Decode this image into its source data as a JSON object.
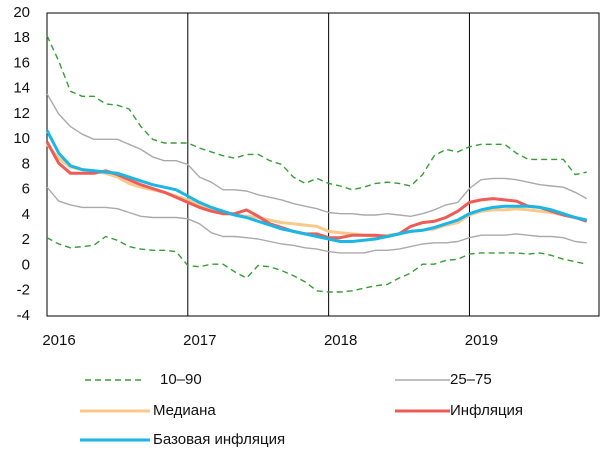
{
  "chart_data": {
    "type": "line",
    "x": [
      2016,
      2016.083,
      2016.167,
      2016.25,
      2016.333,
      2016.417,
      2016.5,
      2016.583,
      2016.667,
      2016.75,
      2016.833,
      2016.917,
      2017,
      2017.083,
      2017.167,
      2017.25,
      2017.333,
      2017.417,
      2017.5,
      2017.583,
      2017.667,
      2017.75,
      2017.833,
      2017.917,
      2018,
      2018.083,
      2018.167,
      2018.25,
      2018.333,
      2018.417,
      2018.5,
      2018.583,
      2018.667,
      2018.75,
      2018.833,
      2018.917,
      2019,
      2019.083,
      2019.167,
      2019.25,
      2019.333,
      2019.417,
      2019.5,
      2019.583,
      2019.667,
      2019.75,
      2019.833
    ],
    "xlim": [
      2016,
      2019.92
    ],
    "xticks": [
      2016,
      2017,
      2018,
      2019
    ],
    "ylim": [
      -4,
      20
    ],
    "yticks": [
      -4,
      -2,
      0,
      2,
      4,
      6,
      8,
      10,
      12,
      14,
      16,
      18,
      20
    ],
    "grid": "x",
    "series": [
      {
        "name": "10–90",
        "color": "#3a9a3a",
        "dashed": true,
        "low": [
          2.2,
          1.7,
          1.4,
          1.5,
          1.6,
          2.3,
          2.0,
          1.5,
          1.3,
          1.2,
          1.2,
          1.1,
          0.0,
          -0.1,
          0.1,
          0.1,
          -0.5,
          -1.0,
          0.0,
          -0.1,
          -0.4,
          -0.8,
          -1.3,
          -2.0,
          -2.1,
          -2.1,
          -2.0,
          -1.8,
          -1.6,
          -1.5,
          -1.0,
          -0.6,
          0.1,
          0.1,
          0.4,
          0.5,
          0.9,
          1.0,
          1.0,
          1.0,
          1.0,
          0.9,
          1.0,
          0.8,
          0.5,
          0.3,
          0.1
        ],
        "high": [
          18.2,
          16.2,
          13.8,
          13.4,
          13.4,
          12.8,
          12.7,
          12.4,
          11.0,
          10.0,
          9.7,
          9.7,
          9.7,
          9.3,
          9.0,
          8.7,
          8.5,
          8.8,
          8.8,
          8.3,
          8.0,
          7.0,
          6.5,
          6.9,
          6.5,
          6.3,
          6.0,
          6.2,
          6.5,
          6.6,
          6.5,
          6.3,
          7.2,
          8.7,
          9.2,
          9.0,
          9.4,
          9.6,
          9.6,
          9.6,
          8.9,
          8.4,
          8.4,
          8.4,
          8.4,
          7.2,
          7.4
        ]
      },
      {
        "name": "25–75",
        "color": "#aaaaaa",
        "dashed": false,
        "low": [
          6.2,
          5.1,
          4.8,
          4.6,
          4.6,
          4.6,
          4.5,
          4.2,
          3.9,
          3.8,
          3.8,
          3.8,
          3.7,
          3.3,
          2.6,
          2.3,
          2.3,
          2.2,
          2.1,
          1.9,
          1.7,
          1.6,
          1.4,
          1.3,
          1.1,
          1.0,
          1.0,
          1.0,
          1.2,
          1.2,
          1.3,
          1.5,
          1.7,
          1.8,
          1.8,
          1.9,
          2.2,
          2.4,
          2.4,
          2.4,
          2.5,
          2.4,
          2.3,
          2.3,
          2.2,
          1.9,
          1.8
        ],
        "high": [
          13.6,
          12.0,
          11.0,
          10.4,
          10.0,
          10.0,
          10.0,
          9.6,
          9.2,
          8.6,
          8.3,
          8.3,
          8.0,
          7.0,
          6.6,
          6.0,
          6.0,
          5.9,
          5.6,
          5.4,
          5.2,
          4.9,
          4.7,
          4.5,
          4.2,
          4.1,
          4.1,
          4.0,
          4.0,
          4.1,
          4.0,
          3.9,
          4.1,
          4.4,
          4.8,
          5.0,
          6.1,
          6.8,
          6.9,
          6.9,
          6.8,
          6.6,
          6.4,
          6.3,
          6.2,
          5.8,
          5.3
        ]
      },
      {
        "name": "Медиана",
        "color": "#f8c98a",
        "values": [
          9.6,
          8.5,
          7.8,
          7.6,
          7.5,
          7.3,
          7.0,
          6.5,
          6.2,
          6.0,
          5.8,
          5.5,
          5.2,
          4.8,
          4.5,
          4.2,
          4.0,
          3.9,
          3.8,
          3.6,
          3.4,
          3.3,
          3.2,
          3.1,
          2.7,
          2.6,
          2.5,
          2.4,
          2.3,
          2.4,
          2.5,
          2.7,
          2.8,
          2.9,
          3.2,
          3.4,
          4.0,
          4.3,
          4.4,
          4.4,
          4.5,
          4.4,
          4.3,
          4.2,
          4.0,
          3.8,
          3.6
        ]
      },
      {
        "name": "Инфляция",
        "color": "#ef5b57",
        "values": [
          9.8,
          8.1,
          7.3,
          7.3,
          7.3,
          7.5,
          7.2,
          6.8,
          6.4,
          6.1,
          5.8,
          5.4,
          5.0,
          4.6,
          4.3,
          4.1,
          4.1,
          4.4,
          3.9,
          3.3,
          3.0,
          2.7,
          2.5,
          2.5,
          2.2,
          2.2,
          2.4,
          2.4,
          2.4,
          2.3,
          2.5,
          3.1,
          3.4,
          3.5,
          3.8,
          4.3,
          5.0,
          5.2,
          5.3,
          5.2,
          5.1,
          4.7,
          4.6,
          4.3,
          4.0,
          3.8,
          3.5
        ]
      },
      {
        "name": "Базовая инфляция",
        "color": "#1ab6e6",
        "values": [
          10.7,
          8.9,
          7.9,
          7.6,
          7.5,
          7.4,
          7.3,
          7.0,
          6.7,
          6.4,
          6.2,
          6.0,
          5.5,
          5.0,
          4.6,
          4.3,
          4.0,
          3.8,
          3.5,
          3.2,
          2.9,
          2.7,
          2.5,
          2.3,
          2.1,
          1.9,
          1.9,
          2.0,
          2.1,
          2.3,
          2.5,
          2.7,
          2.8,
          3.0,
          3.3,
          3.6,
          4.1,
          4.4,
          4.6,
          4.7,
          4.7,
          4.7,
          4.6,
          4.4,
          4.1,
          3.8,
          3.6
        ]
      }
    ]
  }
}
